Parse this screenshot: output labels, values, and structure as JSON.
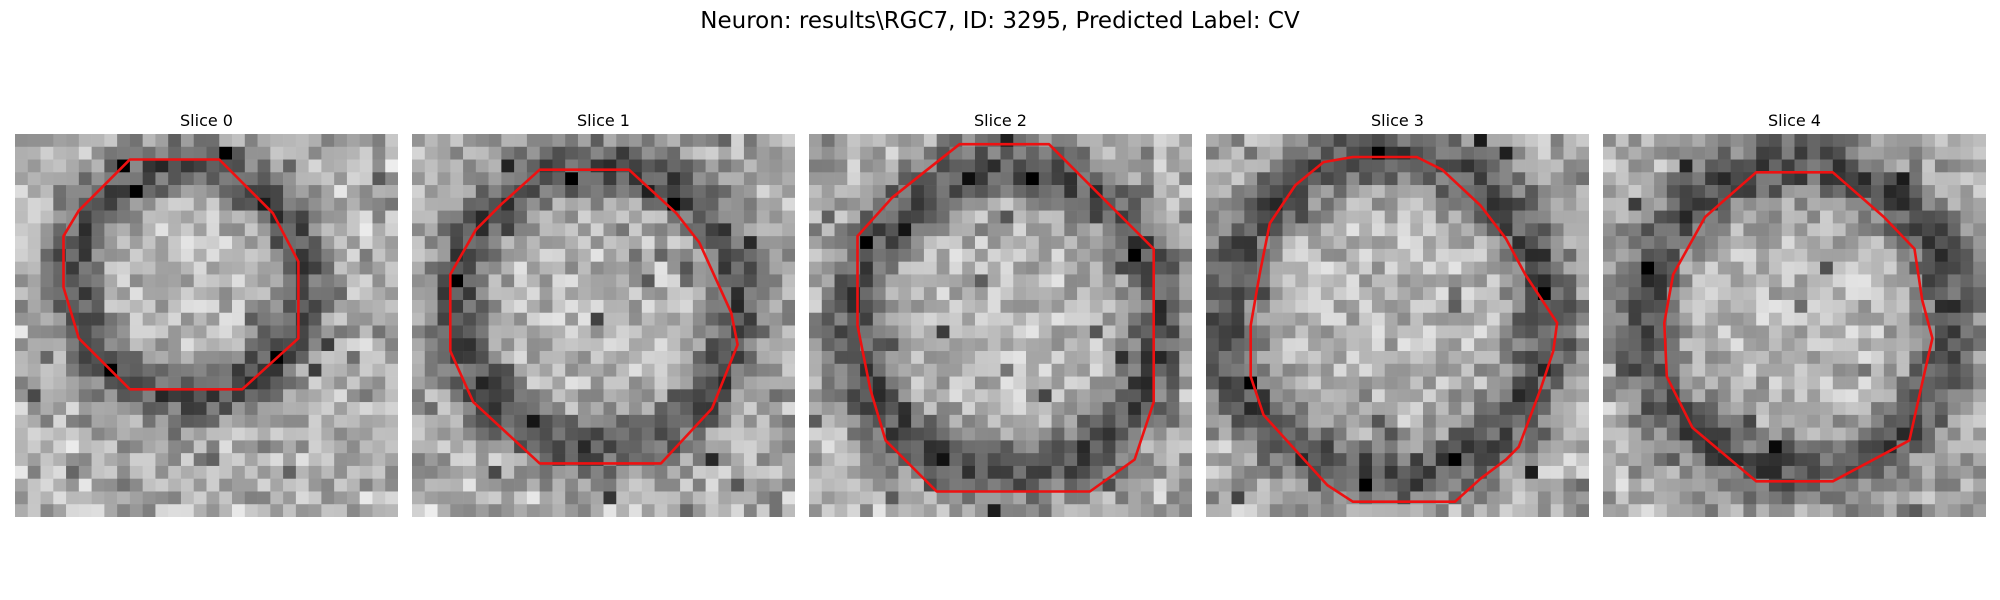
{
  "figure": {
    "title": "Neuron: results\\RGC7, ID: 3295, Predicted Label: CV"
  },
  "panels": [
    {
      "title": "Slice 0"
    },
    {
      "title": "Slice 1"
    },
    {
      "title": "Slice 2"
    },
    {
      "title": "Slice 3"
    },
    {
      "title": "Slice 4"
    }
  ],
  "colors": {
    "contour": "#ee1111",
    "background": "#ffffff"
  },
  "image": {
    "colormap": "grayscale",
    "grid": "30x30 pixels per slice"
  }
}
